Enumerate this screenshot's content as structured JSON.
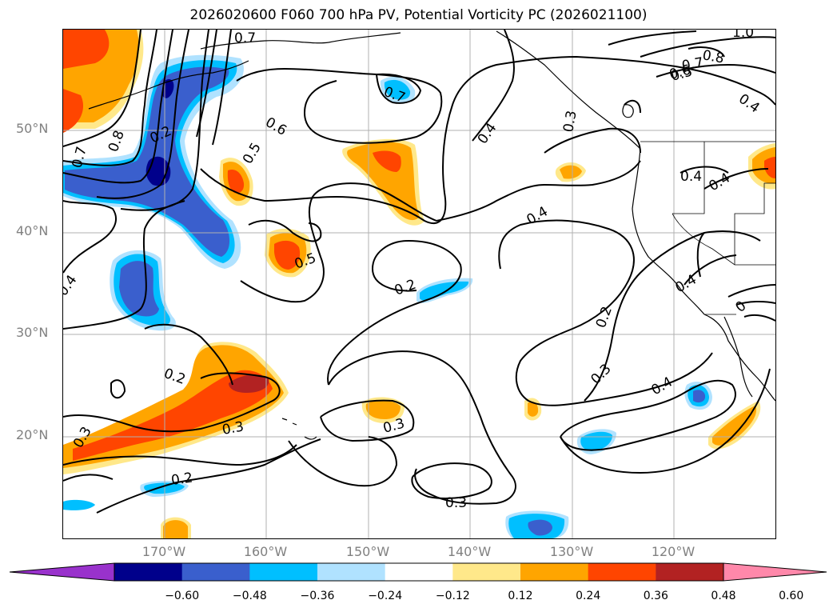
{
  "title": "2026020600 F060 700 hPa PV, Potential Vorticity PC (2026021100)",
  "latitude_labels": [
    "50°N",
    "40°N",
    "30°N",
    "20°N"
  ],
  "longitude_labels": [
    "170°W",
    "160°W",
    "150°W",
    "140°W",
    "130°W",
    "120°W"
  ],
  "contour_labels": {
    "c1": "0.7",
    "c2": "0.7",
    "c3": "0.6",
    "c4": "0.5",
    "c5": "0.4",
    "c6": "0.3",
    "c7": "0.4",
    "c8": "0.2",
    "c9": "0.2",
    "c10": "0.4",
    "c11": "0.2",
    "c12": "0.3",
    "c13": "0.4",
    "c14": "0.3",
    "c15": "0.2",
    "c16": "0.3",
    "c17": "0.3",
    "c18": "0.5",
    "c19": "1.0",
    "c20": "0.8",
    "c21": "0.7",
    "c22": "0.6",
    "c23": "0.5",
    "c24": "0.4",
    "c25": "0.4",
    "c26": "0.4",
    "c27": "0.4",
    "c28": "0.7",
    "c29": "0.8",
    "c30": "0.3",
    "c31": "0.2",
    "c32": "0"
  },
  "colorbar": {
    "ticks": [
      "−0.60",
      "−0.48",
      "−0.36",
      "−0.24",
      "−0.12",
      "0.12",
      "0.24",
      "0.36",
      "0.48",
      "0.60"
    ],
    "colors": [
      "#9932cc",
      "#00008b",
      "#3a5fcd",
      "#00bfff",
      "#b0e2ff",
      "#ffffff",
      "#ffe88a",
      "#ffa500",
      "#ff4500",
      "#b22222",
      "#ff88aa"
    ]
  }
}
